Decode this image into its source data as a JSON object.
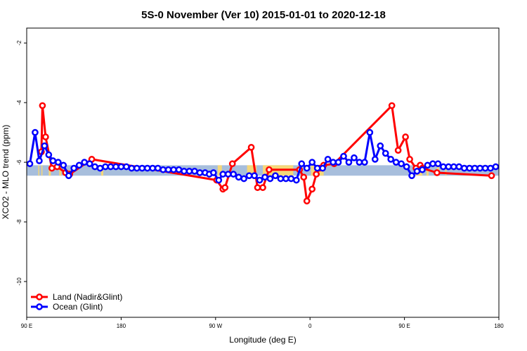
{
  "chart_data": {
    "type": "line",
    "title": "5S-0 November (Ver 10)   2015-01-01 to 2020-12-18",
    "xlabel": "Longitude (deg E)",
    "ylabel": "XCO2 - MLO trend (ppm)",
    "xlim": [
      90,
      540
    ],
    "ylim": [
      -11.2,
      -1.5
    ],
    "x_ticks": [
      {
        "value": 90,
        "label": "90 E"
      },
      {
        "value": 180,
        "label": "180"
      },
      {
        "value": 270,
        "label": "90 W"
      },
      {
        "value": 360,
        "label": "0"
      },
      {
        "value": 450,
        "label": "90 E"
      },
      {
        "value": 540,
        "label": "180"
      }
    ],
    "y_ticks": [
      -10,
      -8,
      -6,
      -4,
      -2
    ],
    "reference_band": {
      "ymin": -6.45,
      "ymax": -6.1,
      "color": "#a7bedc",
      "land_color": "#f5d77a"
    },
    "land_mask_spans": [
      [
        101,
        102
      ],
      [
        104,
        105
      ],
      [
        111,
        113
      ],
      [
        121,
        123
      ],
      [
        161,
        163
      ],
      [
        272,
        276
      ],
      [
        300,
        309
      ],
      [
        315,
        344
      ],
      [
        361,
        373
      ],
      [
        461,
        467
      ],
      [
        471,
        473
      ],
      [
        481,
        483
      ],
      [
        489,
        490
      ]
    ],
    "legend": {
      "position": "bottom-left"
    },
    "series": [
      {
        "name": "Land (Nadir&Glint)",
        "color": "#ff0000",
        "x": [
          104,
          105,
          108,
          114,
          119,
          127,
          131,
          152,
          271,
          277,
          279,
          286,
          304,
          310,
          315,
          321,
          350,
          354,
          357,
          362,
          366,
          369,
          373,
          383,
          438,
          444,
          451,
          455,
          461,
          465,
          467,
          481,
          533
        ],
        "y": [
          -5.65,
          -4.1,
          -5.15,
          -6.2,
          -6.15,
          -6.35,
          -6.4,
          -5.9,
          -6.6,
          -6.9,
          -6.85,
          -6.05,
          -5.5,
          -6.85,
          -6.85,
          -6.25,
          -6.25,
          -6.5,
          -7.3,
          -6.9,
          -6.4,
          -6.2,
          -6.1,
          -6.05,
          -4.1,
          -5.6,
          -5.15,
          -5.9,
          -6.2,
          -6.1,
          -6.2,
          -6.35,
          -6.45
        ]
      },
      {
        "name": "Ocean (Glint)",
        "color": "#0000ff",
        "x": [
          93,
          98,
          102,
          107,
          111,
          115,
          120,
          125,
          130,
          135,
          140,
          145,
          150,
          155,
          160,
          165,
          170,
          175,
          180,
          185,
          190,
          195,
          200,
          205,
          210,
          215,
          220,
          225,
          230,
          235,
          240,
          245,
          250,
          255,
          260,
          264,
          268,
          273,
          277,
          282,
          287,
          292,
          297,
          302,
          307,
          312,
          317,
          322,
          327,
          332,
          337,
          342,
          347,
          352,
          357,
          362,
          367,
          372,
          377,
          382,
          387,
          392,
          397,
          402,
          407,
          412,
          417,
          422,
          427,
          432,
          437,
          442,
          447,
          452,
          457,
          462,
          467,
          472,
          477,
          482,
          487,
          492,
          497,
          502,
          507,
          512,
          517,
          522,
          527,
          532,
          537
        ],
        "y": [
          -6.05,
          -5.0,
          -5.95,
          -5.45,
          -5.75,
          -5.95,
          -6.0,
          -6.1,
          -6.45,
          -6.2,
          -6.1,
          -6.0,
          -6.05,
          -6.15,
          -6.2,
          -6.15,
          -6.15,
          -6.15,
          -6.15,
          -6.15,
          -6.2,
          -6.2,
          -6.2,
          -6.2,
          -6.2,
          -6.2,
          -6.25,
          -6.25,
          -6.25,
          -6.25,
          -6.3,
          -6.3,
          -6.3,
          -6.35,
          -6.35,
          -6.4,
          -6.35,
          -6.6,
          -6.4,
          -6.4,
          -6.4,
          -6.5,
          -6.55,
          -6.45,
          -6.45,
          -6.6,
          -6.5,
          -6.55,
          -6.45,
          -6.55,
          -6.55,
          -6.55,
          -6.6,
          -6.05,
          -6.2,
          -6.0,
          -6.2,
          -6.2,
          -5.9,
          -6.0,
          -6.0,
          -5.8,
          -6.0,
          -5.85,
          -6.0,
          -6.0,
          -5.0,
          -5.9,
          -5.45,
          -5.7,
          -5.9,
          -6.0,
          -6.05,
          -6.15,
          -6.45,
          -6.3,
          -6.25,
          -6.1,
          -6.05,
          -6.05,
          -6.15,
          -6.15,
          -6.15,
          -6.15,
          -6.2,
          -6.2,
          -6.2,
          -6.2,
          -6.2,
          -6.2,
          -6.15
        ]
      }
    ]
  }
}
